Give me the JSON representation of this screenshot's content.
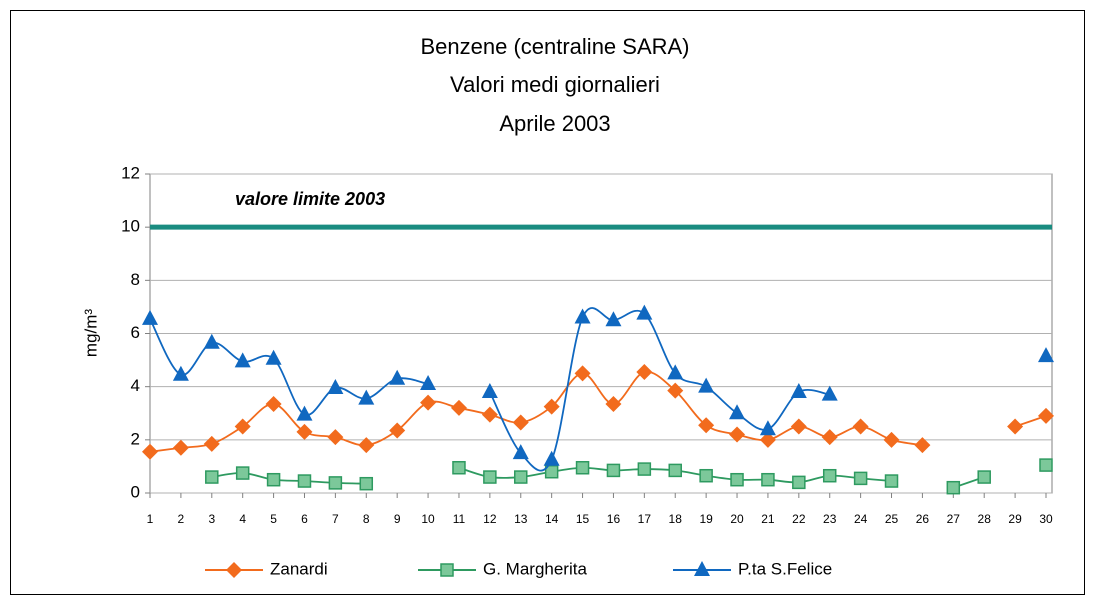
{
  "chart_data": {
    "type": "line",
    "title": [
      "Benzene (centraline SARA)",
      "Valori medi giornalieri",
      "Aprile 2003"
    ],
    "y_label": "mg/m³",
    "x": [
      1,
      2,
      3,
      4,
      5,
      6,
      7,
      8,
      9,
      10,
      11,
      12,
      13,
      14,
      15,
      16,
      17,
      18,
      19,
      20,
      21,
      22,
      23,
      24,
      25,
      26,
      27,
      28,
      29,
      30
    ],
    "xlim": [
      1,
      30
    ],
    "ylim": [
      0,
      12
    ],
    "yticks": [
      0,
      2,
      4,
      6,
      8,
      10,
      12
    ],
    "grid": true,
    "legend": "bottom",
    "limit": {
      "value": 10,
      "label": "valore limite 2003",
      "color": "#1a8c80"
    },
    "series": [
      {
        "name": "Zanardi",
        "color": "#f26b1d",
        "marker": "diamond",
        "values": [
          1.55,
          1.7,
          1.85,
          2.5,
          3.35,
          2.3,
          2.1,
          1.8,
          2.35,
          3.4,
          3.2,
          2.95,
          2.65,
          3.25,
          4.5,
          3.35,
          4.55,
          3.85,
          2.55,
          2.2,
          2.0,
          2.5,
          2.1,
          2.5,
          2.0,
          1.8,
          null,
          null,
          2.5,
          2.9
        ]
      },
      {
        "name": "G. Margherita",
        "color": "#2e9a60",
        "marker": "square",
        "values": [
          null,
          null,
          0.6,
          0.75,
          0.5,
          0.45,
          0.38,
          0.35,
          null,
          null,
          0.95,
          0.6,
          0.6,
          0.8,
          0.95,
          0.85,
          0.9,
          0.85,
          0.65,
          0.5,
          0.5,
          0.4,
          0.65,
          0.55,
          0.45,
          null,
          0.2,
          0.6,
          null,
          1.05
        ]
      },
      {
        "name": "P.ta S.Felice",
        "color": "#1068c0",
        "marker": "triangle",
        "values": [
          6.55,
          4.45,
          5.65,
          4.95,
          5.05,
          2.95,
          3.95,
          3.55,
          4.3,
          4.1,
          null,
          3.8,
          1.5,
          1.25,
          6.6,
          6.5,
          6.75,
          4.5,
          4.0,
          3.0,
          2.4,
          3.8,
          3.7,
          null,
          null,
          null,
          null,
          null,
          null,
          5.15
        ]
      }
    ]
  }
}
